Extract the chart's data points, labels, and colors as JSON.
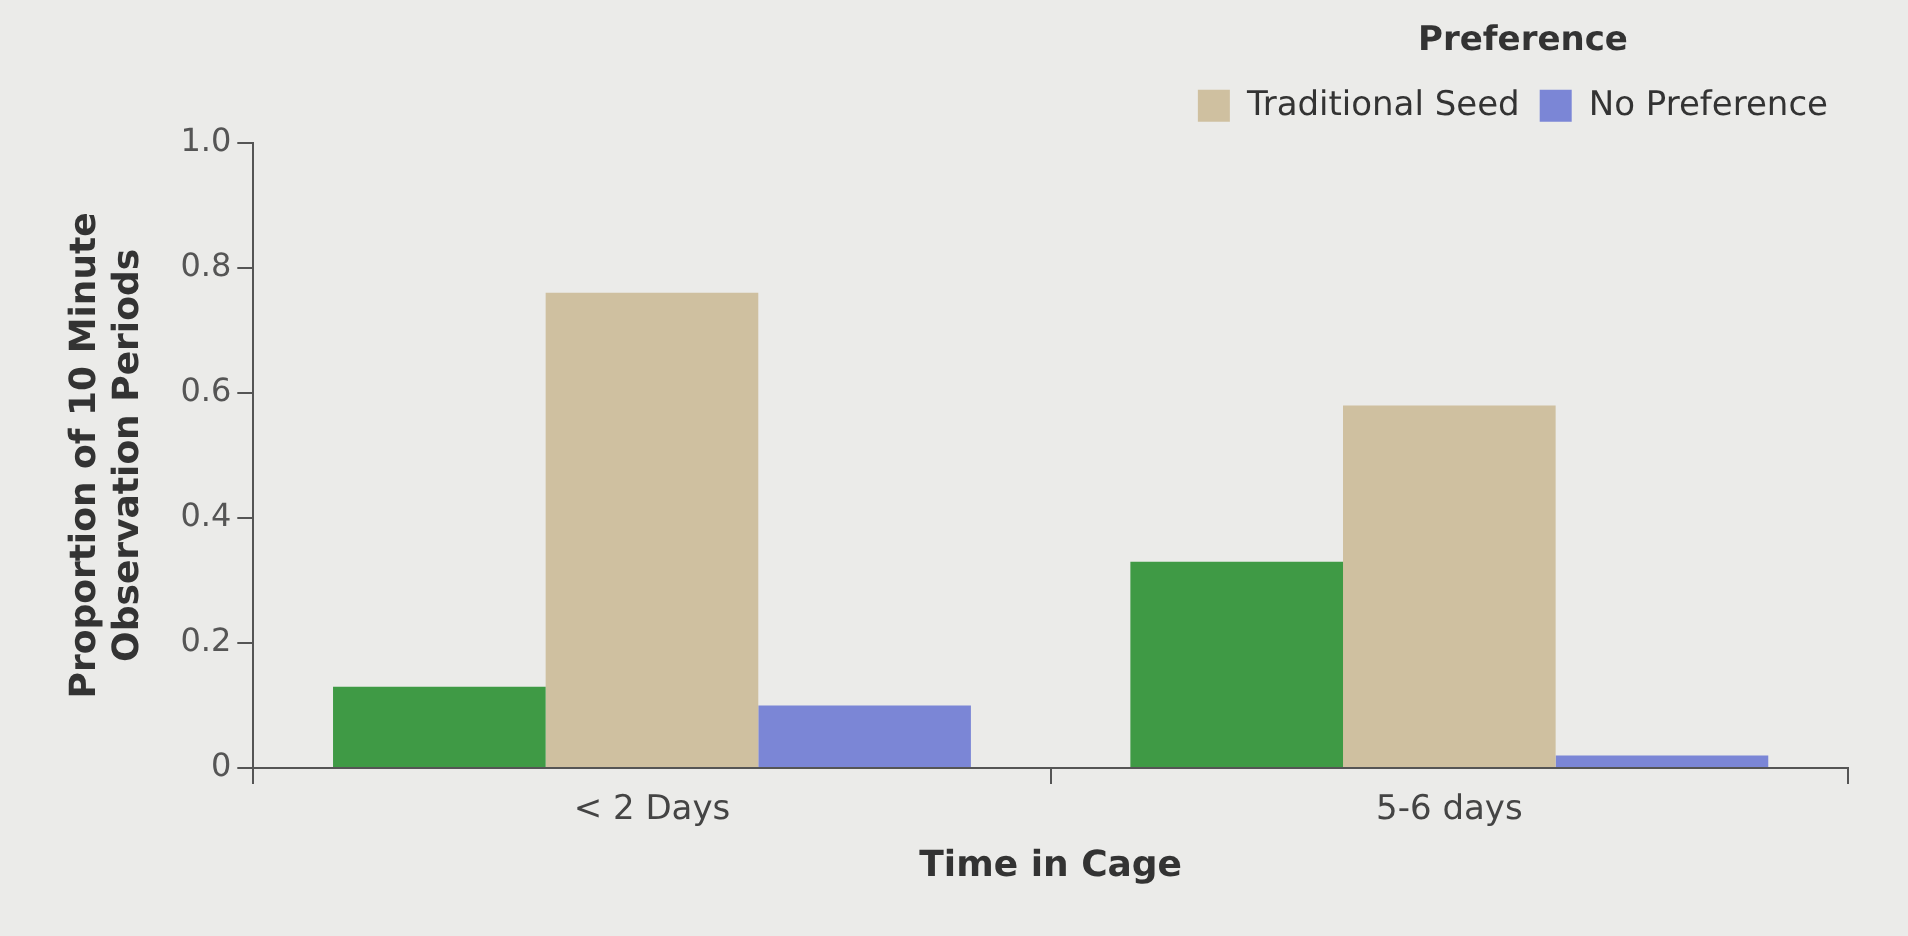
{
  "chart_data": {
    "type": "bar",
    "xlabel": "Time in Cage",
    "ylabel": "Proportion of 10 Minute\nObservation Periods",
    "legend_title": "Preference",
    "categories": [
      "< 2 Days",
      "5-6 days"
    ],
    "series": [
      {
        "color": "#3f9a45",
        "values": [
          0.13,
          0.33
        ]
      },
      {
        "name": "Traditional Seed",
        "color": "#cfc0a0",
        "values": [
          0.76,
          0.58
        ]
      },
      {
        "name": "No Preference",
        "color": "#7b86d6",
        "values": [
          0.1,
          0.02
        ]
      }
    ],
    "ylim": [
      0,
      1
    ],
    "yticks": [
      0,
      0.2,
      0.4,
      0.6,
      0.8,
      {
        "value": 1,
        "label": "1.0"
      }
    ],
    "grid": false,
    "legend": "top right"
  }
}
